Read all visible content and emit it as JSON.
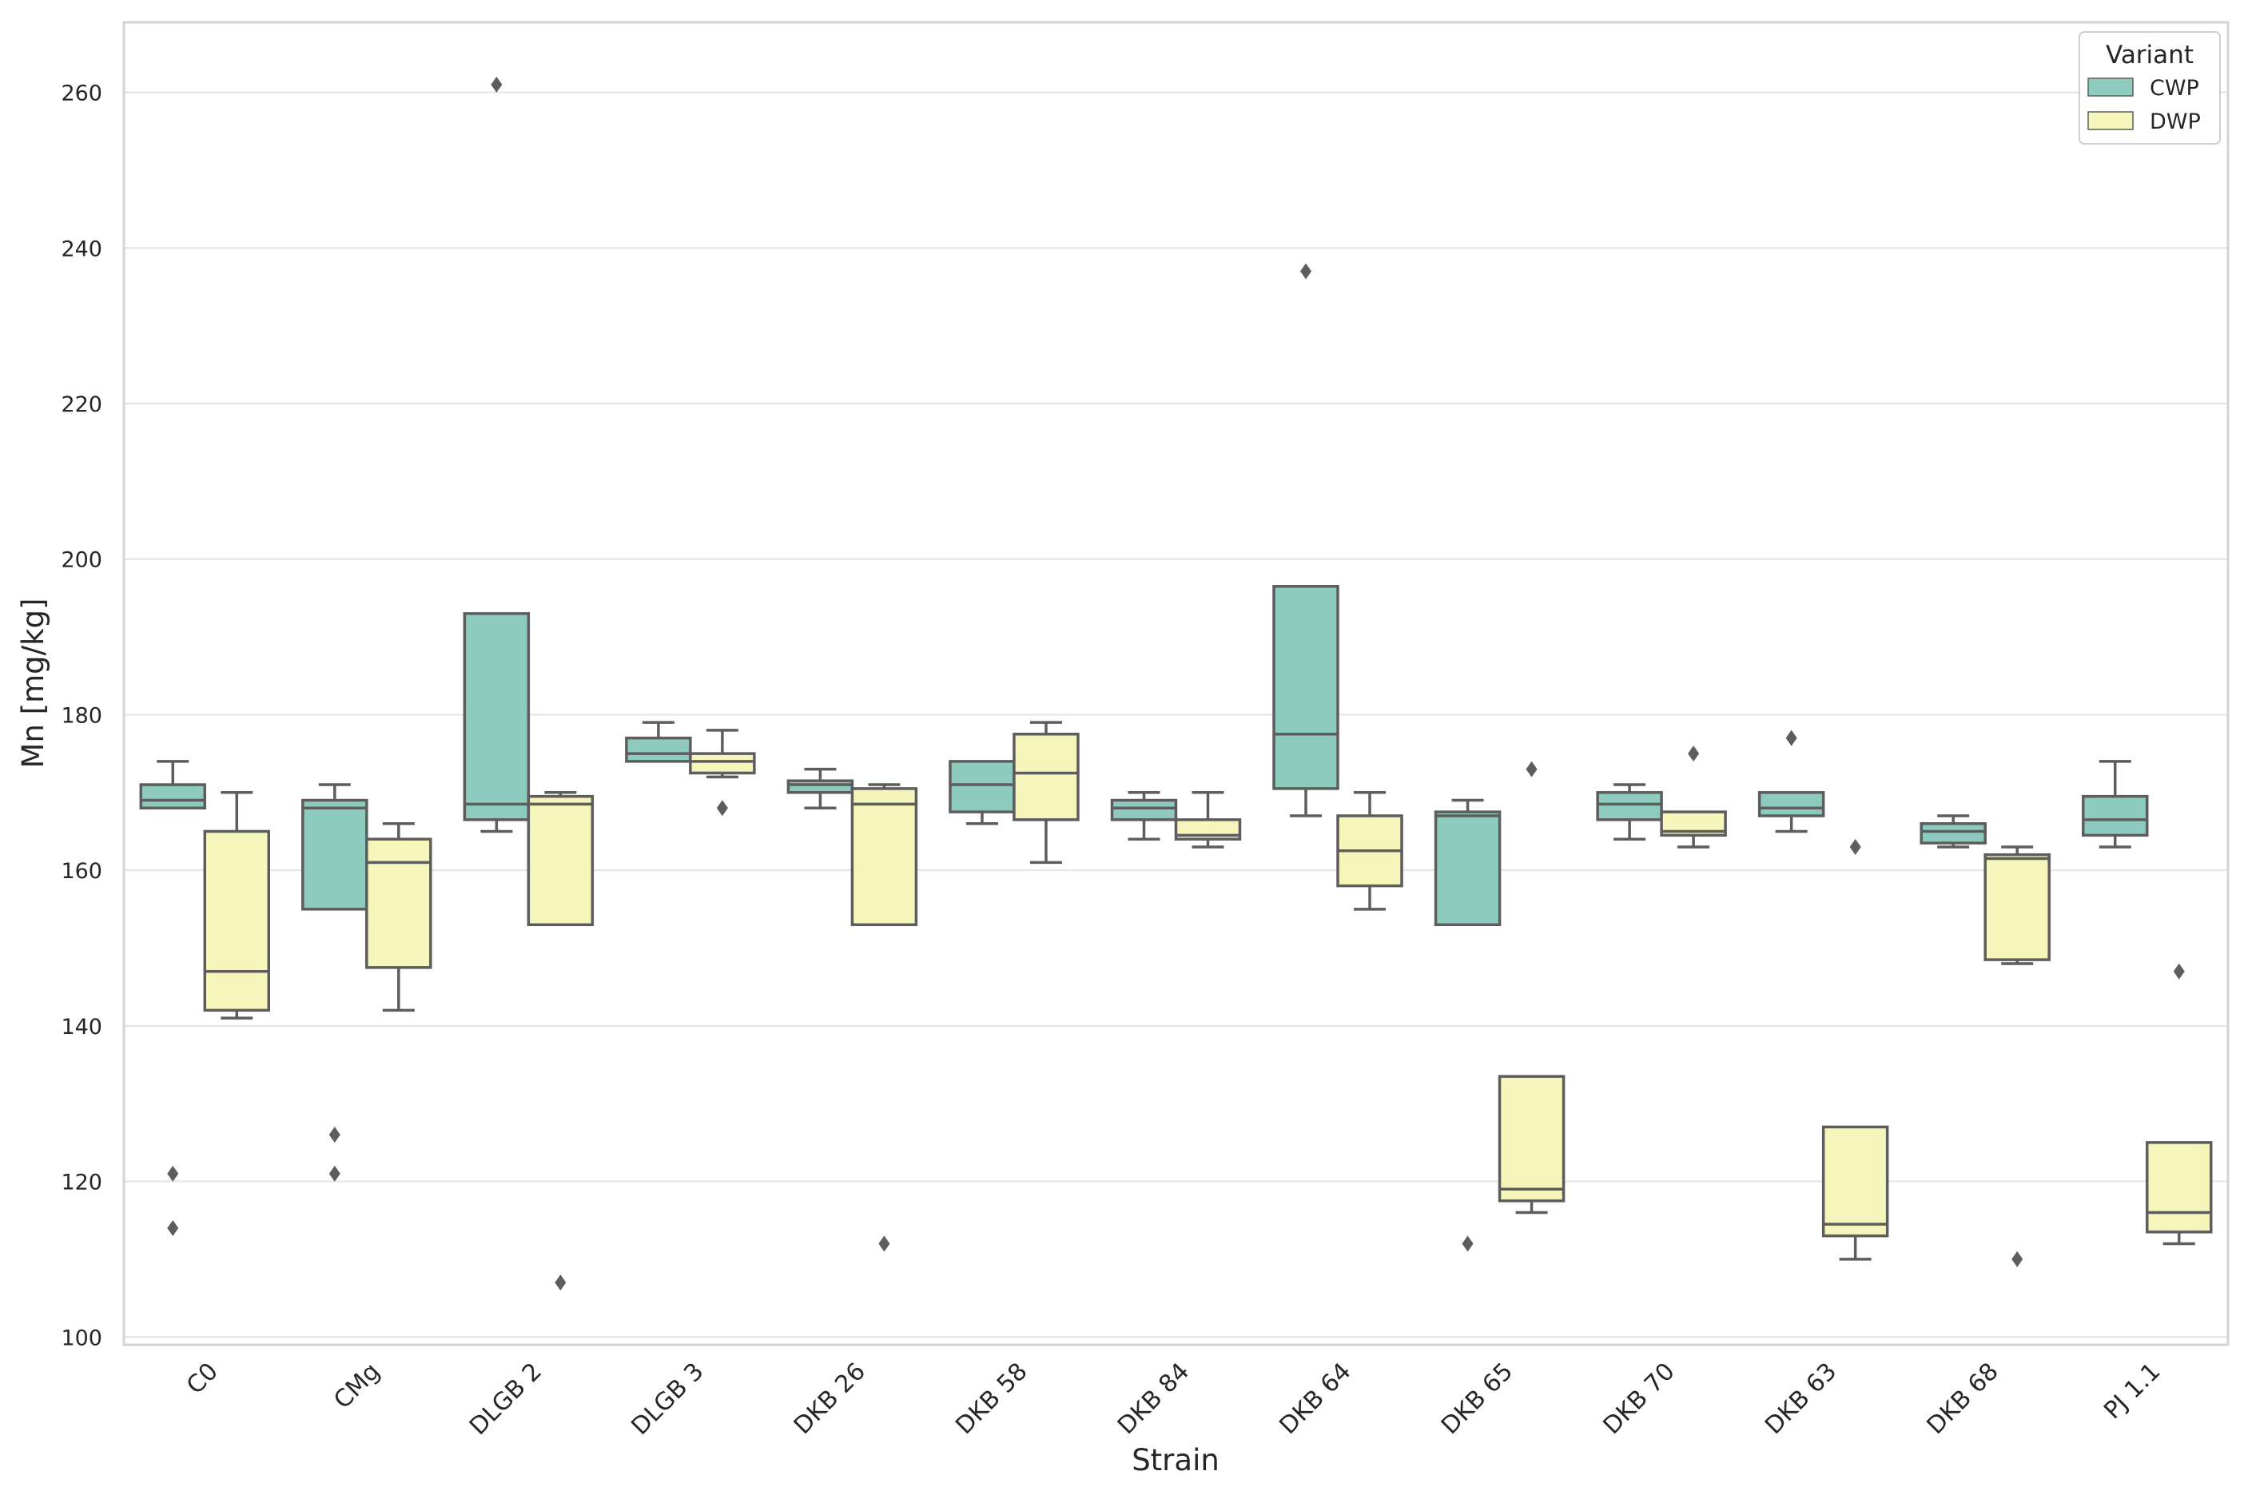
{
  "chart_data": {
    "type": "box",
    "title": "",
    "xlabel": "Strain",
    "ylabel": "Mn [mg/kg]",
    "ylim": [
      99,
      269
    ],
    "yticks": [
      100,
      120,
      140,
      160,
      180,
      200,
      220,
      240,
      260
    ],
    "grid": true,
    "legend": {
      "title": "Variant",
      "position": "top-right",
      "entries": [
        {
          "name": "CWP",
          "color": "#8ecbbf"
        },
        {
          "name": "DWP",
          "color": "#f6f5bb"
        }
      ]
    },
    "colors": {
      "box_edge": "#5d5d5d",
      "grid": "#e3e3e3",
      "frame": "#d4d4d4"
    },
    "categories": [
      "C0",
      "CMg",
      "DLGB 2",
      "DLGB 3",
      "DKB 26",
      "DKB 58",
      "DKB 84",
      "DKB 64",
      "DKB 65",
      "DKB 70",
      "DKB 63",
      "DKB 68",
      "PJ 1.1"
    ],
    "series": [
      {
        "name": "CWP",
        "boxes": [
          {
            "whislo": 168,
            "q1": 168,
            "med": 169,
            "q3": 171,
            "whishi": 174,
            "fliers": [
              121,
              114
            ]
          },
          {
            "whislo": 155,
            "q1": 155,
            "med": 168,
            "q3": 169,
            "whishi": 171,
            "fliers": [
              126,
              121
            ]
          },
          {
            "whislo": 165,
            "q1": 166.5,
            "med": 168.5,
            "q3": 193,
            "whishi": 193,
            "fliers": [
              261
            ]
          },
          {
            "whislo": 174,
            "q1": 174,
            "med": 175,
            "q3": 177,
            "whishi": 179,
            "fliers": []
          },
          {
            "whislo": 168,
            "q1": 170,
            "med": 171,
            "q3": 171.5,
            "whishi": 173,
            "fliers": []
          },
          {
            "whislo": 166,
            "q1": 167.5,
            "med": 171,
            "q3": 174,
            "whishi": 174,
            "fliers": []
          },
          {
            "whislo": 164,
            "q1": 166.5,
            "med": 168,
            "q3": 169,
            "whishi": 170,
            "fliers": []
          },
          {
            "whislo": 167,
            "q1": 170.5,
            "med": 177.5,
            "q3": 196.5,
            "whishi": 196.5,
            "fliers": [
              237
            ]
          },
          {
            "whislo": 153,
            "q1": 153,
            "med": 167,
            "q3": 167.5,
            "whishi": 169,
            "fliers": [
              112
            ]
          },
          {
            "whislo": 164,
            "q1": 166.5,
            "med": 168.5,
            "q3": 170,
            "whishi": 171,
            "fliers": []
          },
          {
            "whislo": 165,
            "q1": 167,
            "med": 168,
            "q3": 170,
            "whishi": 170,
            "fliers": [
              177
            ]
          },
          {
            "whislo": 163,
            "q1": 163.5,
            "med": 165,
            "q3": 166,
            "whishi": 167,
            "fliers": []
          },
          {
            "whislo": 163,
            "q1": 164.5,
            "med": 166.5,
            "q3": 169.5,
            "whishi": 174,
            "fliers": []
          }
        ]
      },
      {
        "name": "DWP",
        "boxes": [
          {
            "whislo": 141,
            "q1": 142,
            "med": 147,
            "q3": 165,
            "whishi": 170,
            "fliers": []
          },
          {
            "whislo": 142,
            "q1": 147.5,
            "med": 161,
            "q3": 164,
            "whishi": 166,
            "fliers": []
          },
          {
            "whislo": 153,
            "q1": 153,
            "med": 168.5,
            "q3": 169.5,
            "whishi": 170,
            "fliers": [
              107
            ]
          },
          {
            "whislo": 172,
            "q1": 172.5,
            "med": 174,
            "q3": 175,
            "whishi": 178,
            "fliers": [
              168
            ]
          },
          {
            "whislo": 153,
            "q1": 153,
            "med": 168.5,
            "q3": 170.5,
            "whishi": 171,
            "fliers": [
              112
            ]
          },
          {
            "whislo": 161,
            "q1": 166.5,
            "med": 172.5,
            "q3": 177.5,
            "whishi": 179,
            "fliers": []
          },
          {
            "whislo": 163,
            "q1": 164,
            "med": 164.5,
            "q3": 166.5,
            "whishi": 170,
            "fliers": []
          },
          {
            "whislo": 155,
            "q1": 158,
            "med": 162.5,
            "q3": 167,
            "whishi": 170,
            "fliers": []
          },
          {
            "whislo": 116,
            "q1": 117.5,
            "med": 119,
            "q3": 133.5,
            "whishi": 133.5,
            "fliers": [
              173
            ]
          },
          {
            "whislo": 163,
            "q1": 164.5,
            "med": 165,
            "q3": 167.5,
            "whishi": 167.5,
            "fliers": [
              175
            ]
          },
          {
            "whislo": 110,
            "q1": 113,
            "med": 114.5,
            "q3": 127,
            "whishi": 127,
            "fliers": [
              163
            ]
          },
          {
            "whislo": 148,
            "q1": 148.5,
            "med": 161.5,
            "q3": 162,
            "whishi": 163,
            "fliers": [
              110
            ]
          },
          {
            "whislo": 112,
            "q1": 113.5,
            "med": 116,
            "q3": 125,
            "whishi": 125,
            "fliers": [
              147
            ]
          }
        ]
      }
    ]
  }
}
